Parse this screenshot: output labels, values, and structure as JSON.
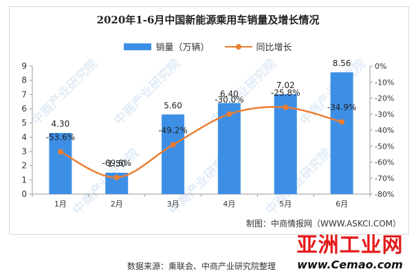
{
  "chart_data": {
    "type": "bar",
    "title": "2020年1-6月中国新能源乘用车销量及增长情况",
    "categories": [
      "1月",
      "2月",
      "3月",
      "4月",
      "5月",
      "6月"
    ],
    "series": [
      {
        "name": "销量（万辆）",
        "type": "bar",
        "axis": "left",
        "color": "#3d8fe6",
        "values": [
          4.3,
          1.5,
          5.6,
          6.4,
          7.02,
          8.56
        ],
        "labels": [
          "4.30",
          "1.50",
          "5.60",
          "6.40",
          "7.02",
          "8.56"
        ]
      },
      {
        "name": "同比增长",
        "type": "line",
        "axis": "right",
        "color": "#ec7d31",
        "values": [
          -53.6,
          -69.6,
          -49.2,
          -30.0,
          -25.8,
          -34.9
        ],
        "labels": [
          "-53.6%",
          "-69.6%",
          "-49.2%",
          "-30.0%",
          "-25.8%",
          "-34.9%"
        ]
      }
    ],
    "ylim_left": [
      0,
      9
    ],
    "yticks_left": [
      "0",
      "1",
      "2",
      "3",
      "4",
      "5",
      "6",
      "7",
      "8",
      "9"
    ],
    "ylim_right": [
      -80,
      0
    ],
    "yticks_right": [
      "-80%",
      "-70%",
      "-60%",
      "-50%",
      "-40%",
      "-30%",
      "-20%",
      "-10%",
      "0%"
    ],
    "legend": "top-center",
    "grid": false
  },
  "source_note": "制图：中商情报网（WWW.ASKCI.COM）",
  "data_source": "数据来源：乘联会、中商产业研究院整理",
  "watermark": "中商产业研究院",
  "logo": {
    "main": "亚洲工业网",
    "sub": "www.Cemao.com"
  }
}
